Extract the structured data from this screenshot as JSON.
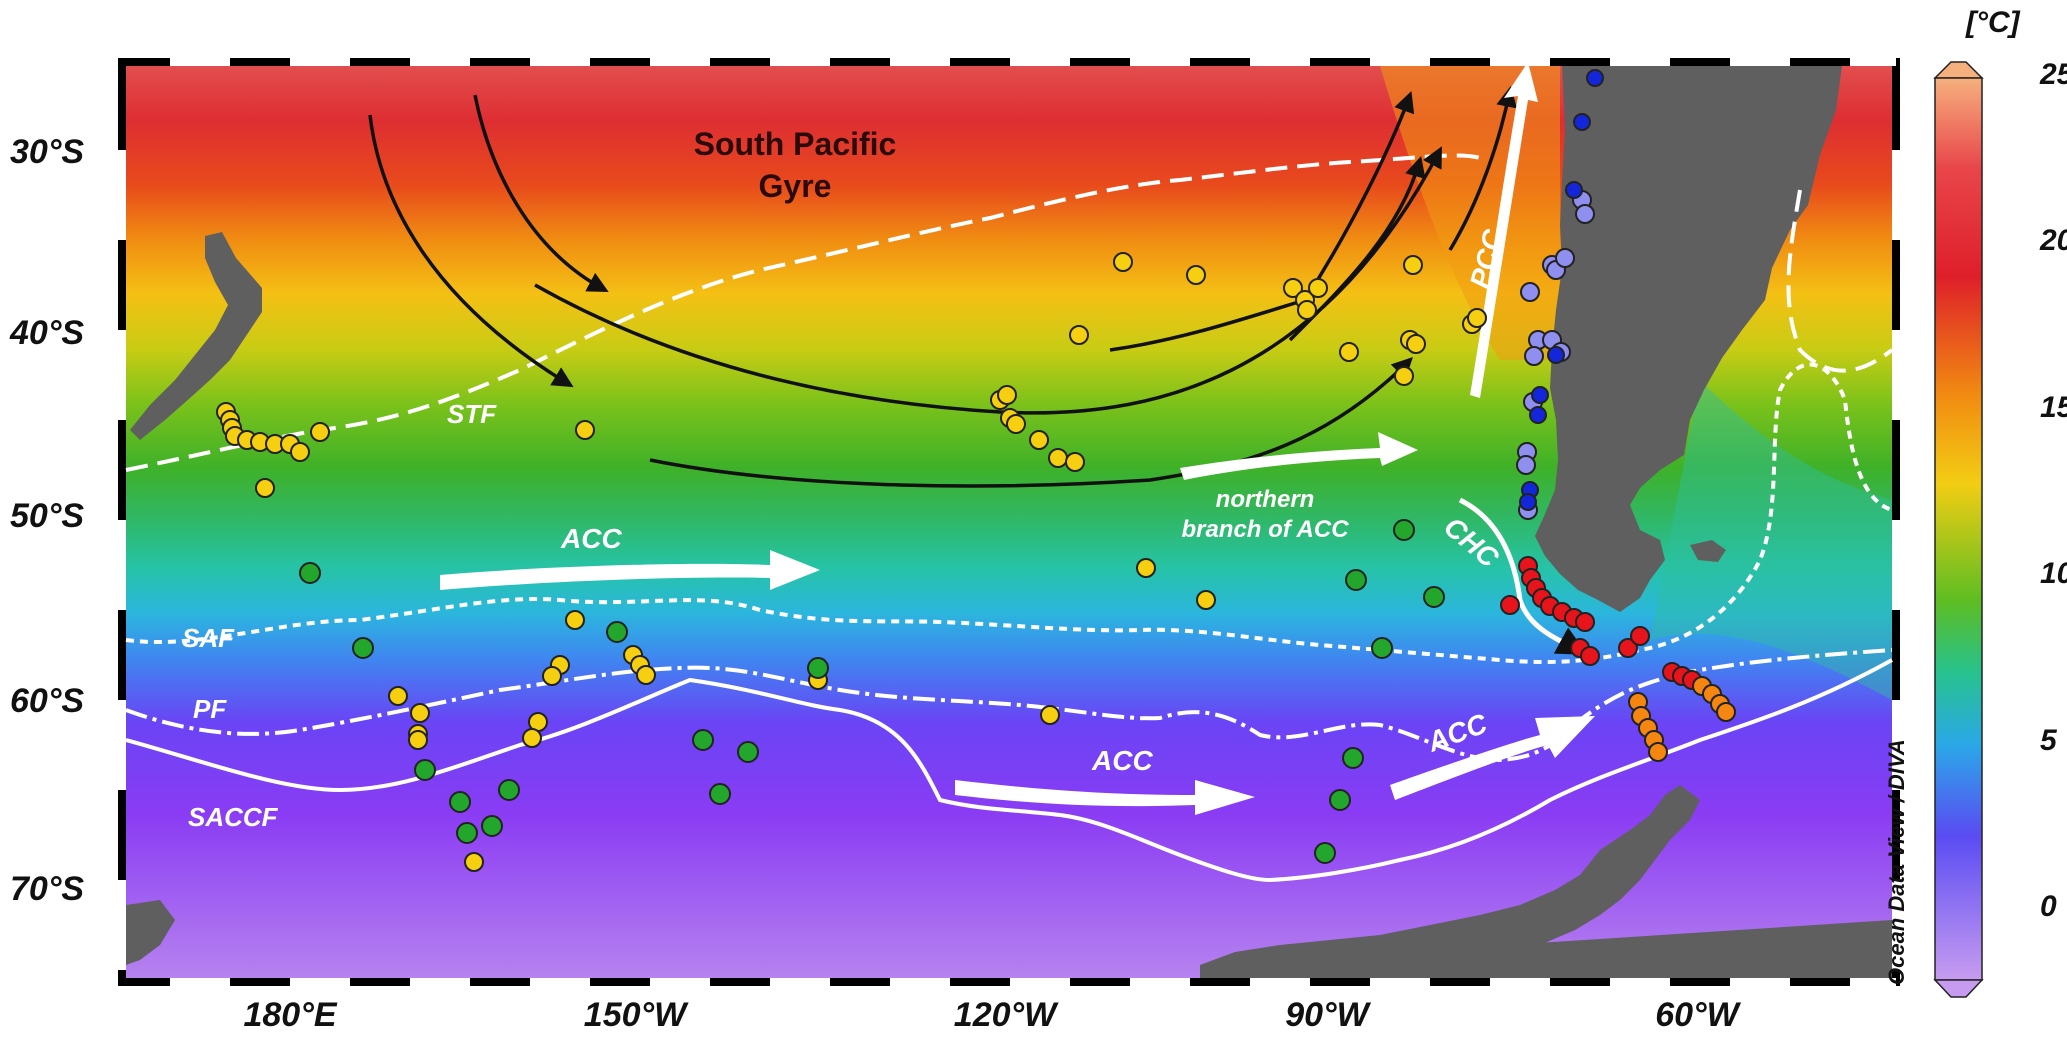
{
  "map": {
    "latitude_labels": [
      "30°S",
      "40°S",
      "50°S",
      "60°S",
      "70°S"
    ],
    "longitude_labels": [
      "180°E",
      "150°W",
      "120°W",
      "90°W",
      "60°W"
    ],
    "title": "South Pacific Gyre",
    "title_lines": [
      "South Pacific",
      "Gyre"
    ],
    "front_labels": {
      "stf": "STF",
      "saf": "SAF",
      "pf": "PF",
      "saccf": "SACCF"
    },
    "current_labels": {
      "acc_west": "ACC",
      "acc_south": "ACC",
      "acc_east": "ACC",
      "northern_branch_line1": "northern",
      "northern_branch_line2": "branch of ACC",
      "pcc": "PCC",
      "chc": "CHC"
    },
    "colorbar": {
      "unit": "[°C]",
      "ticks": [
        "25",
        "20",
        "15",
        "10",
        "5",
        "0"
      ],
      "credit": "Ocean Data View / DIVA"
    },
    "colors": {
      "land": "#5f5f5f",
      "site_yellow": "#f6cf10",
      "site_green": "#22a62b",
      "site_red": "#e8141b",
      "site_orange": "#f5860f",
      "site_lightblue": "#8f8ff0",
      "site_darkblue": "#1426d9"
    }
  }
}
